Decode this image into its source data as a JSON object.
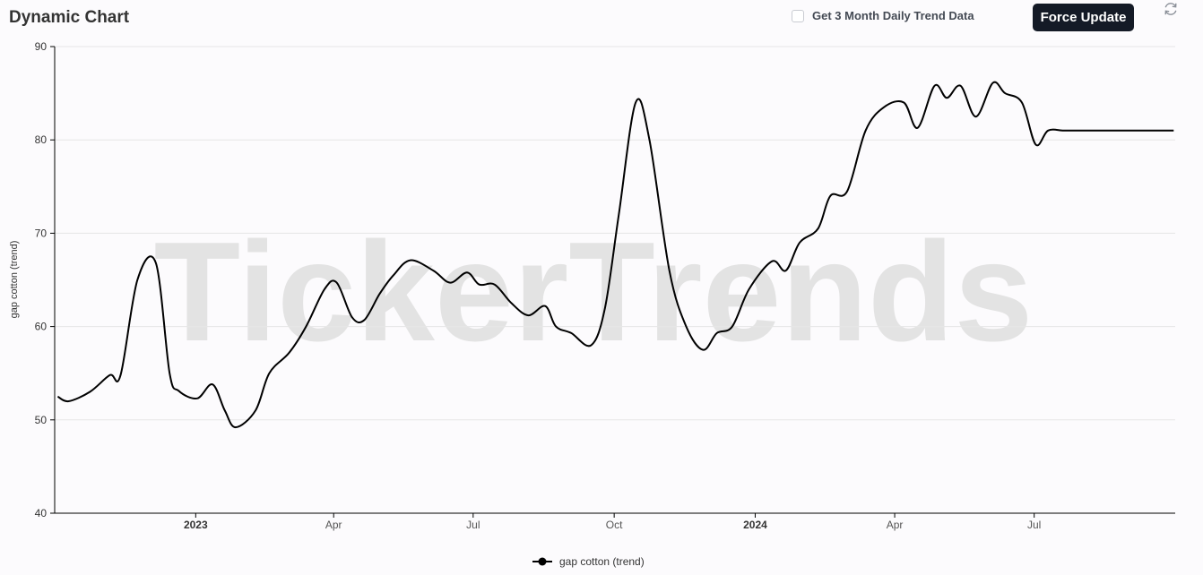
{
  "header": {
    "title": "Dynamic Chart",
    "checkbox_label": "Get 3 Month Daily Trend Data",
    "checkbox_checked": false,
    "button_label": "Force Update",
    "refresh_icon": "refresh-icon"
  },
  "watermark": "TickerTrends",
  "colors": {
    "line": "#000000",
    "grid": "#e6e6e6",
    "button_bg": "#141a26",
    "watermark": "#e3e3e3"
  },
  "chart_data": {
    "type": "line",
    "ylabel": "gap cotton  (trend)",
    "ylim": [
      40,
      90
    ],
    "yticks": [
      40,
      50,
      60,
      70,
      80,
      90
    ],
    "xlim": [
      "2022-10-01",
      "2024-10-01"
    ],
    "xticks": [
      {
        "date": "2023-01-01",
        "label": "2023",
        "bold": true
      },
      {
        "date": "2023-04-01",
        "label": "Apr",
        "bold": false
      },
      {
        "date": "2023-07-01",
        "label": "Jul",
        "bold": false
      },
      {
        "date": "2023-10-01",
        "label": "Oct",
        "bold": false
      },
      {
        "date": "2024-01-01",
        "label": "2024",
        "bold": true
      },
      {
        "date": "2024-04-01",
        "label": "Apr",
        "bold": false
      },
      {
        "date": "2024-07-01",
        "label": "Jul",
        "bold": false
      }
    ],
    "grid": true,
    "legend": "bottom-center",
    "series": [
      {
        "name": "gap cotton  (trend)",
        "x": [
          "2022-10-03",
          "2022-10-10",
          "2022-10-24",
          "2022-11-06",
          "2022-11-13",
          "2022-11-24",
          "2022-12-06",
          "2022-12-15",
          "2022-12-21",
          "2023-01-02",
          "2023-01-12",
          "2023-01-20",
          "2023-01-27",
          "2023-02-09",
          "2023-02-18",
          "2023-03-03",
          "2023-03-14",
          "2023-03-26",
          "2023-04-03",
          "2023-04-13",
          "2023-04-21",
          "2023-05-01",
          "2023-05-10",
          "2023-05-21",
          "2023-06-05",
          "2023-06-16",
          "2023-06-27",
          "2023-07-05",
          "2023-07-15",
          "2023-07-26",
          "2023-08-06",
          "2023-08-17",
          "2023-08-24",
          "2023-09-03",
          "2023-09-16",
          "2023-09-25",
          "2023-10-04",
          "2023-10-15",
          "2023-10-24",
          "2023-11-06",
          "2023-11-17",
          "2023-11-28",
          "2023-12-07",
          "2023-12-17",
          "2023-12-28",
          "2024-01-12",
          "2024-01-21",
          "2024-01-30",
          "2024-02-11",
          "2024-02-19",
          "2024-03-01",
          "2024-03-13",
          "2024-03-25",
          "2024-04-07",
          "2024-04-16",
          "2024-04-27",
          "2024-05-05",
          "2024-05-14",
          "2024-05-24",
          "2024-06-04",
          "2024-06-12",
          "2024-06-23",
          "2024-07-02",
          "2024-07-10",
          "2024-07-20",
          "2024-07-28",
          "2024-08-08",
          "2024-08-17",
          "2024-08-27",
          "2024-09-03",
          "2024-09-12",
          "2024-09-22",
          "2024-09-30"
        ],
        "values": [
          52.5,
          52.0,
          53.0,
          54.8,
          54.8,
          65.0,
          66.8,
          55.0,
          53.1,
          52.3,
          53.8,
          51.0,
          49.2,
          51.0,
          55.0,
          57.2,
          60.0,
          64.0,
          64.7,
          61.0,
          60.7,
          63.5,
          65.5,
          67.1,
          66.0,
          64.7,
          65.8,
          64.5,
          64.5,
          62.5,
          61.2,
          62.2,
          60.0,
          59.3,
          58.0,
          62.0,
          72.0,
          84.0,
          80.0,
          66.0,
          60.0,
          57.5,
          59.3,
          60.0,
          64.0,
          67.0,
          66.0,
          69.0,
          70.5,
          74.0,
          74.5,
          81.0,
          83.5,
          84.0,
          81.3,
          85.8,
          84.5,
          85.8,
          82.5,
          86.1,
          85.0,
          84.0,
          79.5,
          81.0,
          81.0,
          81.0,
          81.0,
          81.0,
          81.0,
          81.0,
          81.0,
          81.0,
          81.0
        ]
      }
    ]
  }
}
